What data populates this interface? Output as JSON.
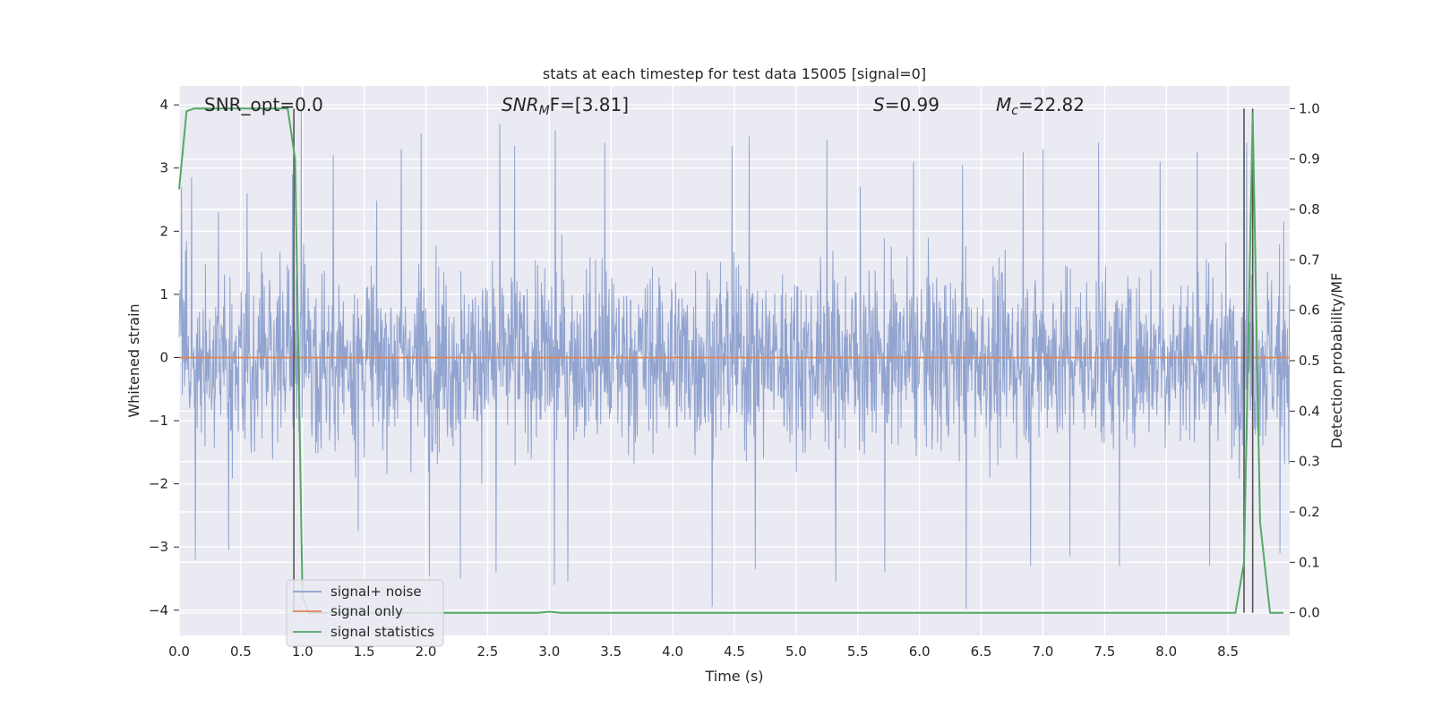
{
  "chart_data": {
    "type": "line",
    "title": "stats at each timestep for test data 15005 [signal=0]",
    "xlabel": "Time (s)",
    "ylabel_left": "Whitened strain",
    "ylabel_right": "Detection probability/MF",
    "xlim": [
      0.0,
      9.0
    ],
    "ylim_left": [
      -4.4,
      4.3
    ],
    "ylim_right": [
      -0.045,
      1.045
    ],
    "x_ticks": [
      "0.0",
      "0.5",
      "1.0",
      "1.5",
      "2.0",
      "2.5",
      "3.0",
      "3.5",
      "4.0",
      "4.5",
      "5.0",
      "5.5",
      "6.0",
      "6.5",
      "7.0",
      "7.5",
      "8.0",
      "8.5"
    ],
    "x_tick_values": [
      0.0,
      0.5,
      1.0,
      1.5,
      2.0,
      2.5,
      3.0,
      3.5,
      4.0,
      4.5,
      5.0,
      5.5,
      6.0,
      6.5,
      7.0,
      7.5,
      8.0,
      8.5
    ],
    "y_left_ticks": [
      "4",
      "3",
      "2",
      "1",
      "0",
      "−1",
      "−2",
      "−3",
      "−4"
    ],
    "y_left_tick_values": [
      4,
      3,
      2,
      1,
      0,
      -1,
      -2,
      -3,
      -4
    ],
    "y_right_ticks": [
      "1.0",
      "0.9",
      "0.8",
      "0.7",
      "0.6",
      "0.5",
      "0.4",
      "0.3",
      "0.2",
      "0.1",
      "0.0"
    ],
    "y_right_tick_values": [
      1.0,
      0.9,
      0.8,
      0.7,
      0.6,
      0.5,
      0.4,
      0.3,
      0.2,
      0.1,
      0.0
    ],
    "grid": true,
    "legend_position": "lower-left",
    "annotations": {
      "snr_opt": "SNR_opt=0.0",
      "snr_mf_prefix": "SNR",
      "snr_mf_sub": "M",
      "snr_mf_suffix": "F=[3.81]",
      "s_prefix": "S",
      "s_suffix": "=0.99",
      "mc_prefix": "M",
      "mc_sub": "c",
      "mc_suffix": "=22.82"
    },
    "vertical_markers_x": [
      0.93,
      8.63,
      8.7
    ],
    "series": [
      {
        "name": "signal+ noise",
        "color": "#8c9fcc",
        "axis": "left",
        "envelope_note": "dense noise, roughly symmetric about 0, amplitude mostly within ±2.5, peaks near ±4",
        "peaks_upper": [
          [
            0.02,
            2.7
          ],
          [
            0.1,
            2.85
          ],
          [
            0.32,
            2.3
          ],
          [
            0.55,
            2.6
          ],
          [
            0.92,
            2.9
          ],
          [
            0.99,
            3.9
          ],
          [
            1.25,
            3.2
          ],
          [
            1.8,
            3.3
          ],
          [
            1.96,
            3.55
          ],
          [
            2.6,
            3.7
          ],
          [
            2.72,
            3.35
          ],
          [
            3.05,
            3.6
          ],
          [
            3.45,
            3.4
          ],
          [
            4.48,
            3.35
          ],
          [
            4.62,
            3.5
          ],
          [
            5.25,
            3.45
          ],
          [
            5.52,
            2.7
          ],
          [
            5.95,
            3.1
          ],
          [
            6.35,
            3.05
          ],
          [
            6.84,
            3.25
          ],
          [
            7.0,
            3.3
          ],
          [
            7.45,
            3.4
          ],
          [
            7.95,
            3.1
          ],
          [
            8.25,
            3.25
          ],
          [
            8.65,
            3.4
          ],
          [
            8.95,
            2.15
          ]
        ],
        "peaks_lower": [
          [
            0.13,
            -3.2
          ],
          [
            0.4,
            -3.05
          ],
          [
            1.45,
            -2.75
          ],
          [
            2.03,
            -3.45
          ],
          [
            2.28,
            -3.5
          ],
          [
            2.57,
            -3.4
          ],
          [
            3.04,
            -3.6
          ],
          [
            3.15,
            -3.55
          ],
          [
            4.32,
            -3.95
          ],
          [
            4.67,
            -3.35
          ],
          [
            5.32,
            -3.55
          ],
          [
            5.72,
            -3.4
          ],
          [
            6.38,
            -3.98
          ],
          [
            6.9,
            -3.3
          ],
          [
            7.22,
            -3.15
          ],
          [
            7.62,
            -3.3
          ],
          [
            8.35,
            -3.3
          ],
          [
            8.92,
            -3.1
          ]
        ]
      },
      {
        "name": "signal only",
        "color": "#dd8452",
        "axis": "left",
        "x": [
          0.0,
          9.0
        ],
        "y": [
          0.0,
          0.0
        ]
      },
      {
        "name": "signal statistics",
        "color": "#55a868",
        "axis": "right",
        "x": [
          0.0,
          0.06,
          0.12,
          0.2,
          0.35,
          0.55,
          0.7,
          0.88,
          0.94,
          1.0,
          1.05,
          1.2,
          1.5,
          2.0,
          2.5,
          2.9,
          3.0,
          3.1,
          3.5,
          4.0,
          5.0,
          6.0,
          7.0,
          8.0,
          8.56,
          8.63,
          8.7,
          8.76,
          8.84,
          8.95
        ],
        "y": [
          0.84,
          0.995,
          1.0,
          1.0,
          1.0,
          1.0,
          1.0,
          1.0,
          0.9,
          0.03,
          0.0,
          0.0,
          0.0,
          0.0,
          0.0,
          0.0,
          0.002,
          0.0,
          0.0,
          0.0,
          0.0,
          0.0,
          0.0,
          0.0,
          0.0,
          0.1,
          0.99,
          0.18,
          0.0,
          0.0
        ]
      }
    ]
  }
}
